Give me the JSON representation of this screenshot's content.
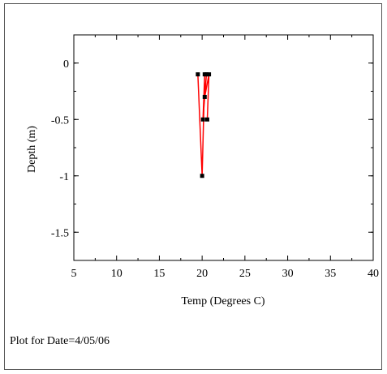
{
  "chart_data": {
    "type": "line",
    "xlabel": "Temp (Degrees C)",
    "ylabel": "Depth (m)",
    "xlim": [
      5,
      40
    ],
    "ylim": [
      -1.75,
      0.25
    ],
    "xticks": [
      5,
      10,
      15,
      20,
      25,
      30,
      35,
      40
    ],
    "yticks": [
      0,
      -0.5,
      -1,
      -1.5
    ],
    "xtick_labels": [
      "5",
      "10",
      "15",
      "20",
      "25",
      "30",
      "35",
      "40"
    ],
    "ytick_labels": [
      "0",
      "-0.5",
      "-1",
      "-1.5"
    ],
    "grid": false,
    "series": [
      {
        "color": "#ff0000",
        "marker_color": "#000000",
        "points": [
          {
            "x": 19.5,
            "y": -0.1
          },
          {
            "x": 20.0,
            "y": -1.0
          },
          {
            "x": 20.3,
            "y": -0.1
          },
          {
            "x": 20.1,
            "y": -0.5
          },
          {
            "x": 20.5,
            "y": -0.1
          },
          {
            "x": 20.3,
            "y": -0.3
          },
          {
            "x": 20.8,
            "y": -0.1
          },
          {
            "x": 20.6,
            "y": -0.5
          }
        ]
      }
    ]
  },
  "caption": "Plot for Date=4/05/06"
}
